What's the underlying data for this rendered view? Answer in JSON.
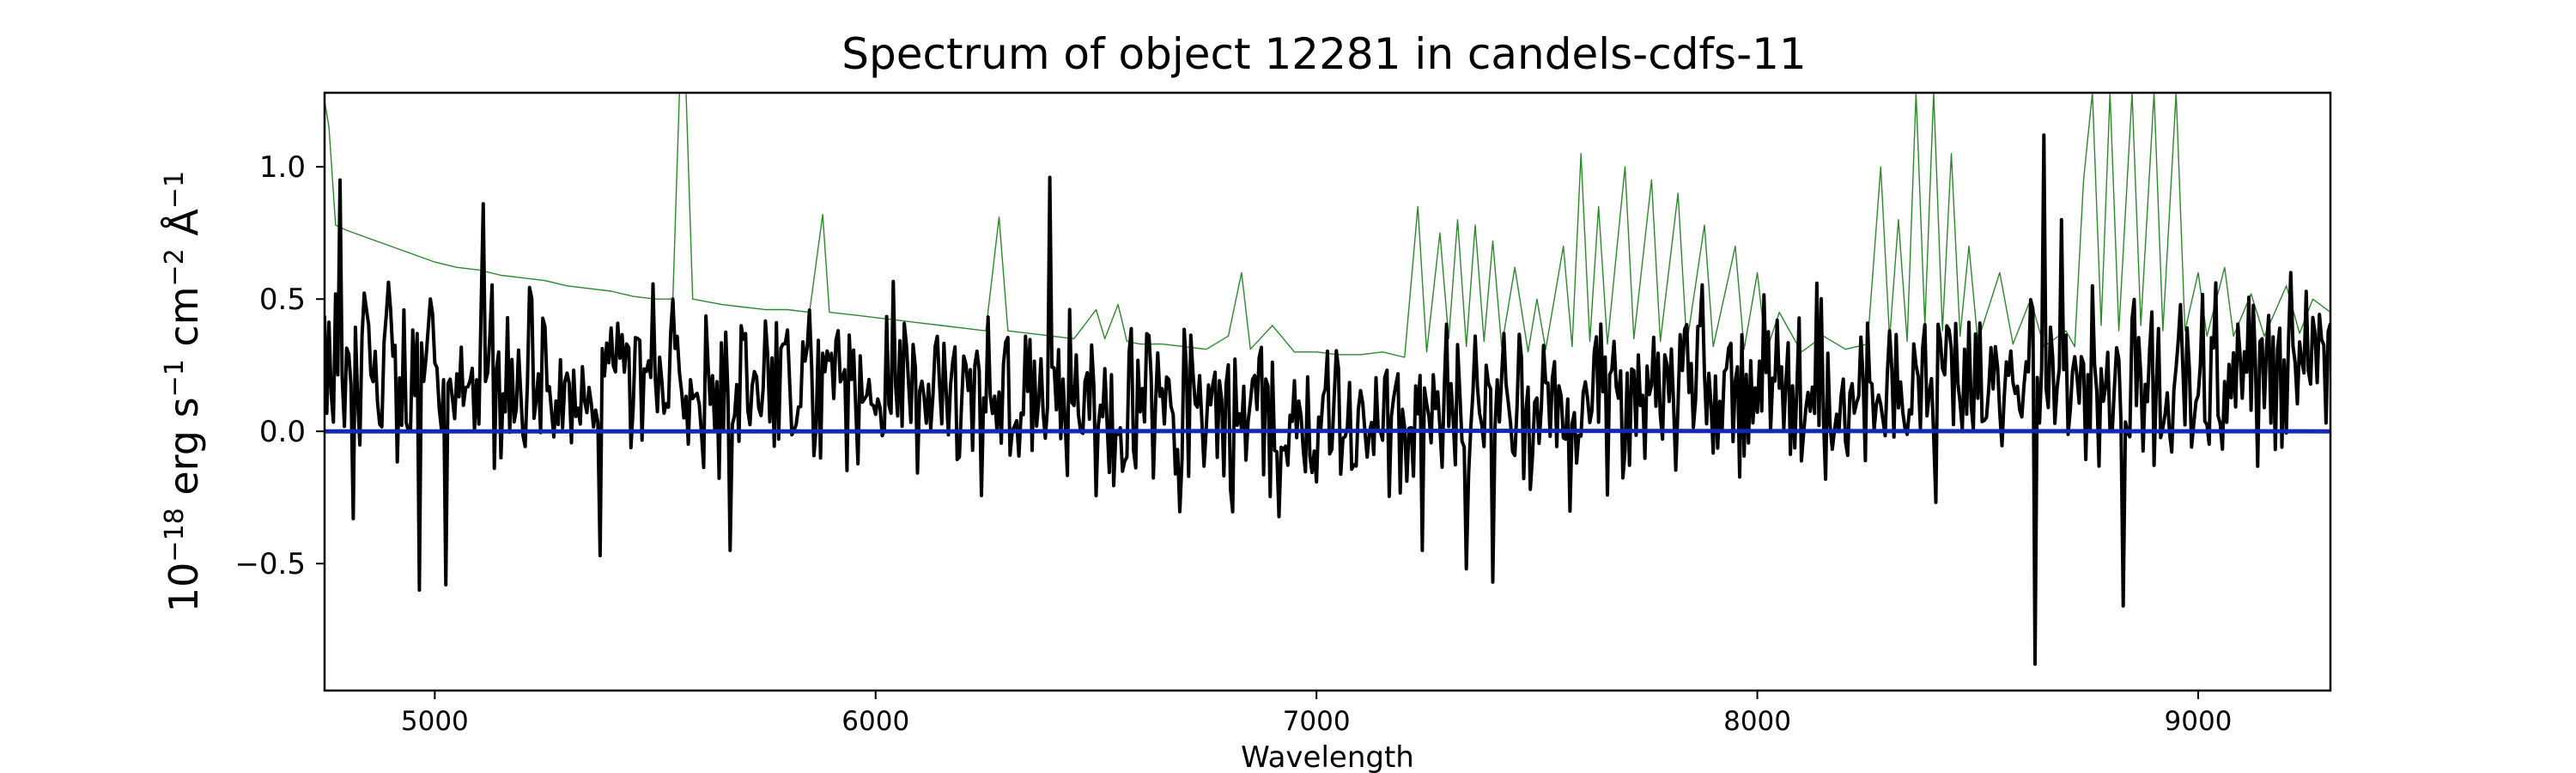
{
  "chart_data": {
    "type": "line",
    "title": "Spectrum of object 12281 in candels-cdfs-11",
    "xlabel": "Wavelength",
    "ylabel": {
      "base": "10",
      "exp1": "−18",
      "unit1": " erg s",
      "exp2": "−1",
      "unit2": " cm",
      "exp3": "−2",
      "unit3": " Å",
      "exp4": "−1"
    },
    "xlim": [
      4750,
      9300
    ],
    "ylim": [
      -0.98,
      1.28
    ],
    "xticks": [
      {
        "value": 5000,
        "label": "5000"
      },
      {
        "value": 6000,
        "label": "6000"
      },
      {
        "value": 7000,
        "label": "7000"
      },
      {
        "value": 8000,
        "label": "8000"
      },
      {
        "value": 9000,
        "label": "9000"
      }
    ],
    "yticks": [
      {
        "value": -0.5,
        "label": "−0.5"
      },
      {
        "value": 0.0,
        "label": "0.0"
      },
      {
        "value": 0.5,
        "label": "0.5"
      },
      {
        "value": 1.0,
        "label": "1.0"
      }
    ],
    "grid": false,
    "series": [
      {
        "color": "#2a8a2a",
        "stroke_width": 1.4,
        "points": [
          [
            4750,
            1.25
          ],
          [
            4760,
            1.15
          ],
          [
            4775,
            0.78
          ],
          [
            4800,
            0.76
          ],
          [
            4850,
            0.73
          ],
          [
            4900,
            0.7
          ],
          [
            4950,
            0.67
          ],
          [
            5000,
            0.64
          ],
          [
            5050,
            0.62
          ],
          [
            5100,
            0.61
          ],
          [
            5150,
            0.59
          ],
          [
            5200,
            0.58
          ],
          [
            5250,
            0.57
          ],
          [
            5300,
            0.55
          ],
          [
            5350,
            0.54
          ],
          [
            5400,
            0.53
          ],
          [
            5450,
            0.51
          ],
          [
            5500,
            0.5
          ],
          [
            5540,
            0.5
          ],
          [
            5555,
            1.28
          ],
          [
            5570,
            1.28
          ],
          [
            5585,
            0.5
          ],
          [
            5650,
            0.48
          ],
          [
            5700,
            0.47
          ],
          [
            5750,
            0.46
          ],
          [
            5800,
            0.46
          ],
          [
            5850,
            0.45
          ],
          [
            5880,
            0.82
          ],
          [
            5895,
            0.45
          ],
          [
            5950,
            0.44
          ],
          [
            6000,
            0.43
          ],
          [
            6050,
            0.42
          ],
          [
            6100,
            0.41
          ],
          [
            6150,
            0.4
          ],
          [
            6200,
            0.39
          ],
          [
            6250,
            0.38
          ],
          [
            6280,
            0.81
          ],
          [
            6300,
            0.38
          ],
          [
            6350,
            0.37
          ],
          [
            6400,
            0.36
          ],
          [
            6450,
            0.35
          ],
          [
            6500,
            0.46
          ],
          [
            6520,
            0.35
          ],
          [
            6550,
            0.48
          ],
          [
            6570,
            0.34
          ],
          [
            6600,
            0.33
          ],
          [
            6650,
            0.33
          ],
          [
            6700,
            0.32
          ],
          [
            6750,
            0.31
          ],
          [
            6800,
            0.36
          ],
          [
            6830,
            0.6
          ],
          [
            6850,
            0.31
          ],
          [
            6900,
            0.4
          ],
          [
            6950,
            0.3
          ],
          [
            7000,
            0.3
          ],
          [
            7050,
            0.29
          ],
          [
            7100,
            0.29
          ],
          [
            7150,
            0.3
          ],
          [
            7200,
            0.28
          ],
          [
            7230,
            0.85
          ],
          [
            7250,
            0.3
          ],
          [
            7280,
            0.75
          ],
          [
            7300,
            0.35
          ],
          [
            7320,
            0.8
          ],
          [
            7340,
            0.32
          ],
          [
            7360,
            0.78
          ],
          [
            7380,
            0.34
          ],
          [
            7400,
            0.72
          ],
          [
            7420,
            0.32
          ],
          [
            7450,
            0.62
          ],
          [
            7480,
            0.3
          ],
          [
            7500,
            0.5
          ],
          [
            7520,
            0.31
          ],
          [
            7560,
            0.7
          ],
          [
            7580,
            0.32
          ],
          [
            7600,
            1.05
          ],
          [
            7620,
            0.34
          ],
          [
            7640,
            0.85
          ],
          [
            7660,
            0.33
          ],
          [
            7700,
            1.0
          ],
          [
            7720,
            0.35
          ],
          [
            7760,
            0.95
          ],
          [
            7780,
            0.34
          ],
          [
            7820,
            0.9
          ],
          [
            7840,
            0.33
          ],
          [
            7880,
            0.78
          ],
          [
            7900,
            0.32
          ],
          [
            7950,
            0.7
          ],
          [
            7970,
            0.31
          ],
          [
            8000,
            0.6
          ],
          [
            8020,
            0.3
          ],
          [
            8050,
            0.45
          ],
          [
            8100,
            0.3
          ],
          [
            8150,
            0.36
          ],
          [
            8200,
            0.31
          ],
          [
            8250,
            0.33
          ],
          [
            8280,
            1.0
          ],
          [
            8300,
            0.35
          ],
          [
            8320,
            0.8
          ],
          [
            8340,
            0.34
          ],
          [
            8360,
            1.28
          ],
          [
            8380,
            0.4
          ],
          [
            8400,
            1.28
          ],
          [
            8420,
            0.38
          ],
          [
            8440,
            1.05
          ],
          [
            8460,
            0.36
          ],
          [
            8480,
            0.7
          ],
          [
            8500,
            0.34
          ],
          [
            8550,
            0.6
          ],
          [
            8580,
            0.33
          ],
          [
            8620,
            0.5
          ],
          [
            8650,
            0.32
          ],
          [
            8700,
            0.38
          ],
          [
            8720,
            0.32
          ],
          [
            8740,
            0.95
          ],
          [
            8760,
            1.28
          ],
          [
            8780,
            0.4
          ],
          [
            8800,
            1.28
          ],
          [
            8820,
            0.38
          ],
          [
            8850,
            1.28
          ],
          [
            8870,
            0.4
          ],
          [
            8900,
            1.28
          ],
          [
            8920,
            0.38
          ],
          [
            8950,
            1.28
          ],
          [
            8970,
            0.38
          ],
          [
            9000,
            0.6
          ],
          [
            9020,
            0.36
          ],
          [
            9060,
            0.62
          ],
          [
            9080,
            0.36
          ],
          [
            9120,
            0.52
          ],
          [
            9150,
            0.36
          ],
          [
            9200,
            0.55
          ],
          [
            9230,
            0.37
          ],
          [
            9260,
            0.5
          ],
          [
            9300,
            0.45
          ]
        ]
      },
      {
        "color": "#000000",
        "stroke_width": 4,
        "noise": {
          "seed": 12281,
          "step": 5,
          "amplitude": 0.16
        },
        "baseline": [
          [
            4750,
            0.3
          ],
          [
            5000,
            0.22
          ],
          [
            5500,
            0.18
          ],
          [
            6000,
            0.17
          ],
          [
            6400,
            0.12
          ],
          [
            6700,
            0.06
          ],
          [
            7000,
            0.02
          ],
          [
            7300,
            0.06
          ],
          [
            7600,
            0.1
          ],
          [
            8000,
            0.18
          ],
          [
            8400,
            0.16
          ],
          [
            8700,
            0.17
          ],
          [
            9000,
            0.18
          ],
          [
            9300,
            0.2
          ]
        ],
        "spikes": [
          [
            4785,
            0.95
          ],
          [
            4815,
            -0.33
          ],
          [
            4965,
            -0.6
          ],
          [
            5025,
            -0.58
          ],
          [
            5110,
            0.86
          ],
          [
            5375,
            -0.47
          ],
          [
            5670,
            -0.45
          ],
          [
            6395,
            0.96
          ],
          [
            7240,
            -0.45
          ],
          [
            7340,
            -0.52
          ],
          [
            7400,
            -0.57
          ],
          [
            8630,
            -0.88
          ],
          [
            8650,
            1.12
          ],
          [
            8830,
            -0.66
          ],
          [
            8690,
            0.8
          ],
          [
            8760,
            0.55
          ],
          [
            9210,
            0.6
          ]
        ]
      },
      {
        "color": "#1428b4",
        "stroke_width": 5,
        "points": [
          [
            4750,
            0.0
          ],
          [
            6200,
            0.0
          ],
          [
            7200,
            0.002
          ],
          [
            9300,
            0.0
          ]
        ]
      }
    ]
  }
}
